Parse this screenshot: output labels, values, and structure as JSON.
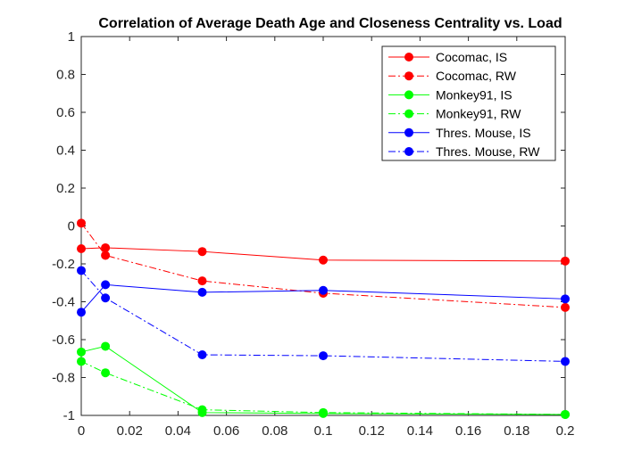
{
  "chart_data": {
    "type": "line",
    "title": "Correlation of Average Death Age and Closeness Centrality vs. Load",
    "xlabel": "",
    "ylabel": "",
    "xlim": [
      0,
      0.2
    ],
    "ylim": [
      -1,
      1
    ],
    "xticks": [
      0,
      0.02,
      0.04,
      0.06,
      0.08,
      0.1,
      0.12,
      0.14,
      0.16,
      0.18,
      0.2
    ],
    "yticks": [
      -1,
      -0.8,
      -0.6,
      -0.4,
      -0.2,
      0,
      0.2,
      0.4,
      0.6,
      0.8,
      1
    ],
    "xtick_labels": [
      "0",
      "0.02",
      "0.04",
      "0.06",
      "0.08",
      "0.1",
      "0.12",
      "0.14",
      "0.16",
      "0.18",
      "0.2"
    ],
    "ytick_labels": [
      "-1",
      "-0.8",
      "-0.6",
      "-0.4",
      "-0.2",
      "0",
      "0.2",
      "0.4",
      "0.6",
      "0.8",
      "1"
    ],
    "grid": false,
    "legend_position": "top-right",
    "x": [
      0,
      0.01,
      0.05,
      0.1,
      0.2
    ],
    "series": [
      {
        "name": "Cocomac, IS",
        "color": "#ff0000",
        "dash": "solid",
        "values": [
          -0.12,
          -0.115,
          -0.135,
          -0.18,
          -0.185
        ]
      },
      {
        "name": "Cocomac, RW",
        "color": "#ff0000",
        "dash": "dashdot",
        "values": [
          0.015,
          -0.155,
          -0.29,
          -0.355,
          -0.43
        ]
      },
      {
        "name": "Monkey91, IS",
        "color": "#00ff00",
        "dash": "solid",
        "values": [
          -0.665,
          -0.635,
          -0.985,
          -0.99,
          -0.995
        ]
      },
      {
        "name": "Monkey91, RW",
        "color": "#00ff00",
        "dash": "dashdot",
        "values": [
          -0.715,
          -0.775,
          -0.97,
          -0.985,
          -0.995
        ]
      },
      {
        "name": "Thres. Mouse, IS",
        "color": "#0000ff",
        "dash": "solid",
        "values": [
          -0.455,
          -0.31,
          -0.35,
          -0.34,
          -0.385
        ]
      },
      {
        "name": "Thres. Mouse, RW",
        "color": "#0000ff",
        "dash": "dashdot",
        "values": [
          -0.235,
          -0.38,
          -0.68,
          -0.685,
          -0.715
        ]
      }
    ]
  }
}
